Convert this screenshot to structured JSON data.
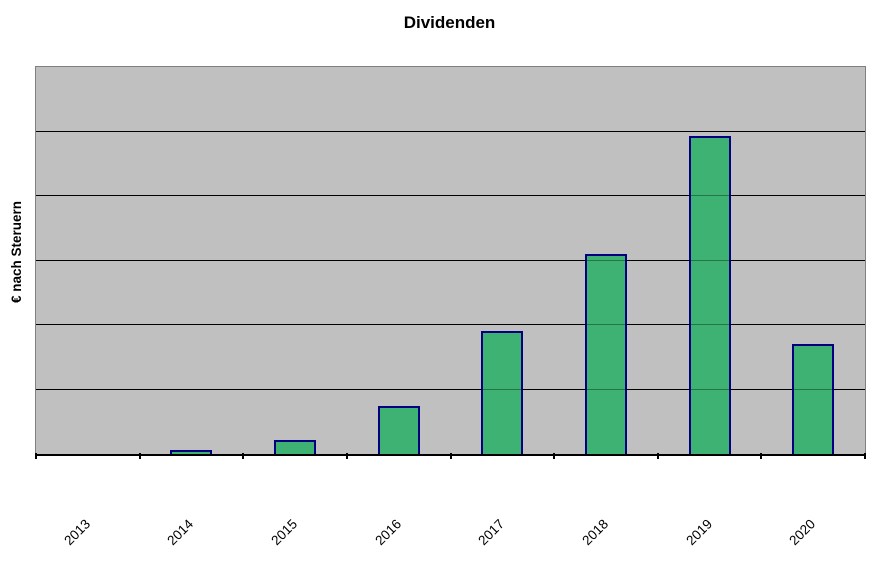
{
  "chart_data": {
    "type": "bar",
    "title": "Dividenden",
    "ylabel": "€ nach Steruern",
    "categories": [
      "2013",
      "2014",
      "2015",
      "2016",
      "2017",
      "2018",
      "2019",
      "2020"
    ],
    "values": [
      0,
      0.055,
      0.22,
      0.75,
      1.9,
      3.1,
      4.93,
      1.71
    ],
    "values_unit_note": "y-axis has no numeric tick labels; values estimated in gridline intervals",
    "ylim": [
      0,
      6
    ],
    "gridline_intervals": 6,
    "y_tick_labels_visible": false,
    "legend": "none",
    "x_label_rotation_deg": 45,
    "colors": {
      "bar_fill": "#3DB273",
      "bar_border": "#000080",
      "plot_background": "#C0C0C0",
      "plot_border": "#808080",
      "gridline": "#000000",
      "axis_line": "#000000",
      "page_background": "#FFFFFF",
      "text": "#000000"
    }
  }
}
